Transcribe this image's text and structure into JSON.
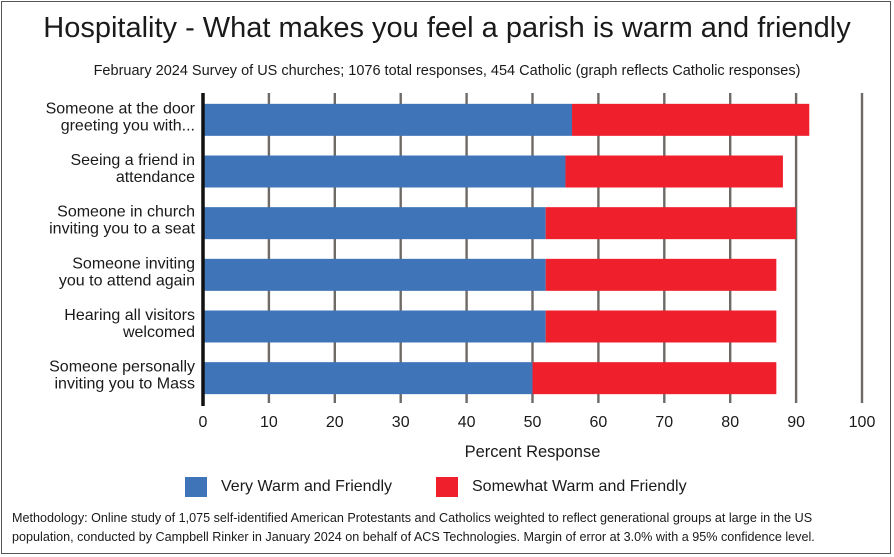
{
  "title": "Hospitality - What makes you feel a parish is warm and friendly",
  "subtitle": "February 2024 Survey of US churches; 1076 total responses, 454 Catholic (graph reflects Catholic responses)",
  "methodology": {
    "line1": "Methodology: Online study of 1,075 self-identified American Protestants and Catholics weighted to reflect generational groups at large in the US",
    "line2": "population, conducted by Campbell Rinker in January 2024 on behalf of ACS Technologies. Margin of error at 3.0% with a 95% confidence level."
  },
  "colors": {
    "very": "#3f74b8",
    "somewhat": "#ef1f2b",
    "grid": "#6e6a66"
  },
  "chart_data": {
    "type": "bar",
    "orientation": "horizontal",
    "stacked": true,
    "categories": [
      [
        "Someone at the door",
        "greeting you with..."
      ],
      [
        "Seeing a friend in",
        "attendance"
      ],
      [
        "Someone in church",
        "inviting you to a seat"
      ],
      [
        "Someone inviting",
        "you to attend again"
      ],
      [
        "Hearing all visitors",
        "welcomed"
      ],
      [
        "Someone personally",
        "inviting you to Mass"
      ]
    ],
    "series": [
      {
        "name": "Very Warm and Friendly",
        "values": [
          56,
          55,
          52,
          52,
          52,
          50
        ]
      },
      {
        "name": "Somewhat Warm and Friendly",
        "values": [
          36,
          33,
          38,
          35,
          35,
          37
        ]
      }
    ],
    "xlabel": "Percent Response",
    "xlim": [
      0,
      100
    ],
    "xticks": [
      0,
      10,
      20,
      30,
      40,
      50,
      60,
      70,
      80,
      90,
      100
    ],
    "grid": true,
    "legend": "bottom"
  }
}
